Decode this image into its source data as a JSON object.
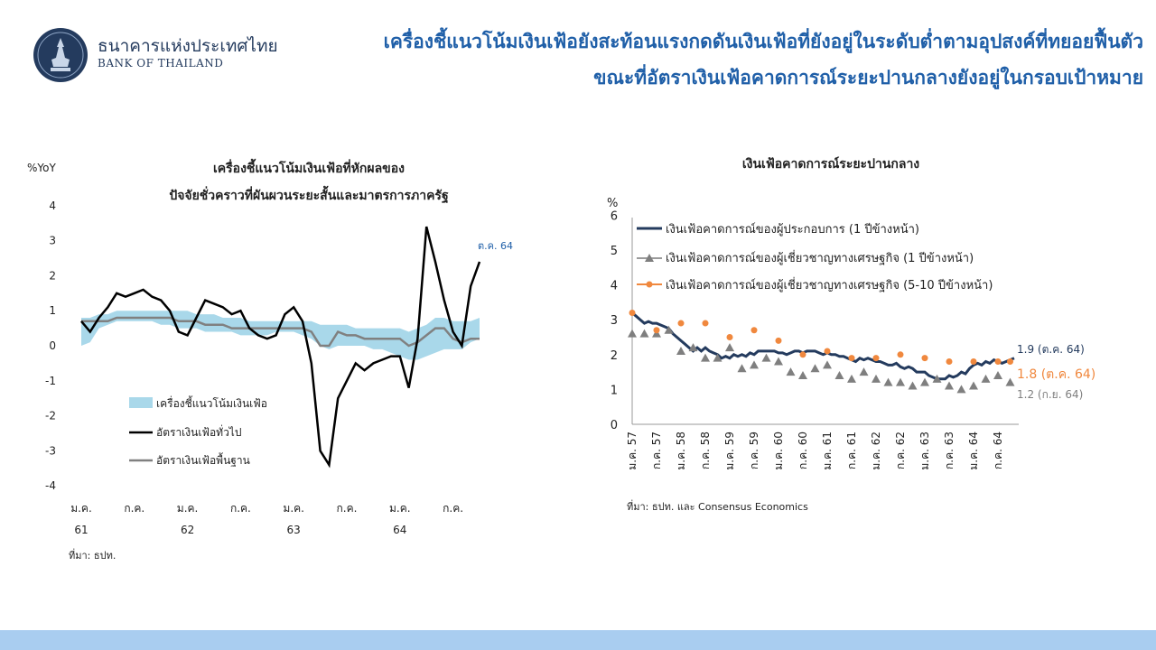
{
  "header": {
    "bank_name_th": "ธนาคารแห่งประเทศไทย",
    "bank_name_en": "BANK OF THAILAND",
    "title_line1": "เครื่องชี้แนวโน้มเงินเฟ้อยังสะท้อนแรงกดดันเงินเฟ้อที่ยังอยู่ในระดับต่ำตามอุปสงค์ที่ทยอยฟื้นตัว",
    "title_line2": "ขณะที่อัตราเงินเฟ้อคาดการณ์ระยะปานกลางยังอยู่ในกรอบเป้าหมาย"
  },
  "colors": {
    "title": "#1f5fa8",
    "band": "#a9d8ea",
    "headline": "#000000",
    "core": "#808080",
    "business": "#243b5e",
    "consensus_1y": "#7f7f7f",
    "consensus_5_10y": "#f0883e",
    "footer": "#a9cdf0"
  },
  "chart_data": [
    {
      "type": "line",
      "title": "เครื่องชี้แนวโน้มเงินเฟ้อที่หักผลของ",
      "subtitle": "ปัจจัยชั่วคราวที่ผันผวนระยะสั้นและมาตรการภาครัฐ",
      "ylabel": "%YoY",
      "ylim": [
        -4,
        4
      ],
      "yticks": [
        "4",
        "3",
        "2",
        "1",
        "0",
        "-1",
        "-2",
        "-3",
        "-4"
      ],
      "xticks": [
        "ม.ค.",
        "ก.ค.",
        "ม.ค.",
        "ก.ค.",
        "ม.ค.",
        "ก.ค.",
        "ม.ค.",
        "ก.ค."
      ],
      "year_labels": [
        "61",
        "62",
        "63",
        "64"
      ],
      "annotation": "ต.ค. 64",
      "source": "ที่มา: ธปท.",
      "legend": [
        "เครื่องชี้แนวโน้มเงินเฟ้อ",
        "อัตราเงินเฟ้อทั่วไป",
        "อัตราเงินเฟ้อพื้นฐาน"
      ],
      "months": 46,
      "series": [
        {
          "name": "อัตราเงินเฟ้อทั่วไป",
          "values": [
            0.7,
            0.4,
            0.8,
            1.1,
            1.5,
            1.4,
            1.5,
            1.6,
            1.4,
            1.3,
            1.0,
            0.4,
            0.3,
            0.8,
            1.3,
            1.2,
            1.1,
            0.9,
            1.0,
            0.5,
            0.3,
            0.2,
            0.3,
            0.9,
            1.1,
            0.7,
            -0.5,
            -3.0,
            -3.4,
            -1.5,
            -1.0,
            -0.5,
            -0.7,
            -0.5,
            -0.4,
            -0.3,
            -0.3,
            -1.2,
            0.2,
            3.4,
            2.4,
            1.3,
            0.4,
            0.0,
            1.7,
            2.4
          ]
        },
        {
          "name": "อัตราเงินเฟ้อพื้นฐาน",
          "values": [
            0.7,
            0.7,
            0.7,
            0.7,
            0.8,
            0.8,
            0.8,
            0.8,
            0.8,
            0.8,
            0.8,
            0.7,
            0.7,
            0.7,
            0.6,
            0.6,
            0.6,
            0.5,
            0.5,
            0.5,
            0.5,
            0.5,
            0.5,
            0.5,
            0.5,
            0.5,
            0.4,
            0.0,
            0.0,
            0.4,
            0.3,
            0.3,
            0.2,
            0.2,
            0.2,
            0.2,
            0.2,
            0.0,
            0.1,
            0.3,
            0.5,
            0.5,
            0.2,
            0.1,
            0.2,
            0.2
          ]
        },
        {
          "name": "เครื่องชี้แนวโน้มเงินเฟ้อ",
          "low": [
            0.0,
            0.1,
            0.5,
            0.6,
            0.7,
            0.7,
            0.7,
            0.7,
            0.7,
            0.6,
            0.6,
            0.5,
            0.5,
            0.5,
            0.4,
            0.4,
            0.4,
            0.4,
            0.3,
            0.3,
            0.3,
            0.3,
            0.4,
            0.4,
            0.4,
            0.3,
            0.2,
            0.0,
            -0.1,
            0.0,
            0.0,
            0.0,
            0.0,
            -0.1,
            -0.1,
            -0.2,
            -0.3,
            -0.4,
            -0.4,
            -0.3,
            -0.2,
            -0.1,
            -0.1,
            -0.1,
            0.1,
            0.2
          ],
          "high": [
            0.8,
            0.8,
            0.9,
            0.9,
            1.0,
            1.0,
            1.0,
            1.0,
            1.0,
            1.0,
            1.0,
            1.0,
            1.0,
            0.9,
            0.9,
            0.9,
            0.8,
            0.8,
            0.8,
            0.7,
            0.7,
            0.7,
            0.7,
            0.7,
            0.7,
            0.7,
            0.7,
            0.6,
            0.6,
            0.6,
            0.6,
            0.5,
            0.5,
            0.5,
            0.5,
            0.5,
            0.5,
            0.4,
            0.5,
            0.6,
            0.8,
            0.8,
            0.7,
            0.7,
            0.7,
            0.8
          ]
        }
      ]
    },
    {
      "type": "line",
      "title": "เงินเฟ้อคาดการณ์ระยะปานกลาง",
      "ylabel": "%",
      "ylim": [
        0,
        6
      ],
      "yticks": [
        "6",
        "5",
        "4",
        "3",
        "2",
        "1",
        "0"
      ],
      "xticks": [
        "ม.ค. 57",
        "ก.ค. 57",
        "ม.ค. 58",
        "ก.ค. 58",
        "ม.ค. 59",
        "ก.ค. 59",
        "ม.ค. 60",
        "ก.ค. 60",
        "ม.ค. 61",
        "ก.ค. 61",
        "ม.ค. 62",
        "ก.ค. 62",
        "ม.ค. 63",
        "ก.ค. 63",
        "ม.ค. 64",
        "ก.ค. 64"
      ],
      "source": "ที่มา: ธปท. และ Consensus Economics",
      "end_labels": [
        "1.9 (ต.ค. 64)",
        "1.8 (ต.ค. 64)",
        "1.2 (ก.ย. 64)"
      ],
      "legend": [
        "เงินเฟ้อคาดการณ์ของผู้ประกอบการ  (1 ปีข้างหน้า)",
        "เงินเฟ้อคาดการณ์ของผู้เชี่ยวชาญทางเศรษฐกิจ  (1 ปีข้างหน้า)",
        "เงินเฟ้อคาดการณ์ของผู้เชี่ยวชาญทางเศรษฐกิจ  (5-10 ปีข้างหน้า)"
      ],
      "series": [
        {
          "name": "เงินเฟ้อคาดการณ์ของผู้ประกอบการ  (1 ปีข้างหน้า)",
          "x": [
            0,
            1,
            2,
            3,
            4,
            5,
            6,
            7,
            8,
            9,
            10,
            11,
            12,
            13,
            14,
            15,
            16,
            17,
            18,
            19,
            20,
            21,
            22,
            23,
            24,
            25,
            26,
            27,
            28,
            29,
            30,
            31,
            32,
            33,
            34,
            35,
            36,
            37,
            38,
            39,
            40,
            41,
            42,
            43,
            44,
            45,
            46,
            47,
            48,
            49,
            50,
            51,
            52,
            53,
            54,
            55,
            56,
            57,
            58,
            59,
            60,
            61,
            62,
            63,
            64,
            65,
            66,
            67,
            68,
            69,
            70,
            71,
            72,
            73,
            74,
            75,
            76,
            77,
            78,
            79,
            80,
            81,
            82,
            83,
            84,
            85,
            86,
            87,
            88,
            89,
            90,
            91,
            92,
            93,
            94
          ],
          "values": [
            3.2,
            3.1,
            3.0,
            2.9,
            2.95,
            2.9,
            2.9,
            2.85,
            2.8,
            2.75,
            2.6,
            2.5,
            2.4,
            2.3,
            2.2,
            2.1,
            2.2,
            2.1,
            2.2,
            2.1,
            2.05,
            2.0,
            1.9,
            1.95,
            1.9,
            2.0,
            1.95,
            2.0,
            1.95,
            2.05,
            2.0,
            2.1,
            2.1,
            2.1,
            2.1,
            2.1,
            2.05,
            2.05,
            2.0,
            2.05,
            2.1,
            2.1,
            2.05,
            2.1,
            2.1,
            2.1,
            2.05,
            2.0,
            2.05,
            2.0,
            2.0,
            1.95,
            1.95,
            1.9,
            1.85,
            1.8,
            1.9,
            1.85,
            1.9,
            1.85,
            1.8,
            1.8,
            1.75,
            1.7,
            1.7,
            1.75,
            1.65,
            1.6,
            1.65,
            1.6,
            1.5,
            1.5,
            1.5,
            1.4,
            1.35,
            1.3,
            1.3,
            1.3,
            1.4,
            1.35,
            1.4,
            1.5,
            1.45,
            1.6,
            1.7,
            1.75,
            1.7,
            1.8,
            1.75,
            1.85,
            1.8,
            1.75,
            1.8,
            1.85,
            1.9
          ]
        },
        {
          "name": "เงินเฟ้อคาดการณ์ของผู้เชี่ยวชาญทางเศรษฐกิจ  (1 ปีข้างหน้า)",
          "x": [
            0,
            3,
            6,
            9,
            12,
            15,
            18,
            21,
            24,
            27,
            30,
            33,
            36,
            39,
            42,
            45,
            48,
            51,
            54,
            57,
            60,
            63,
            66,
            69,
            72,
            75,
            78,
            81,
            84,
            87,
            90,
            93
          ],
          "values": [
            2.6,
            2.6,
            2.6,
            2.7,
            2.1,
            2.2,
            1.9,
            1.9,
            2.2,
            1.6,
            1.7,
            1.9,
            1.8,
            1.5,
            1.4,
            1.6,
            1.7,
            1.4,
            1.3,
            1.5,
            1.3,
            1.2,
            1.2,
            1.1,
            1.2,
            1.3,
            1.1,
            1.0,
            1.1,
            1.3,
            1.4,
            1.2
          ]
        },
        {
          "name": "เงินเฟ้อคาดการณ์ของผู้เชี่ยวชาญทางเศรษฐกิจ  (5-10 ปีข้างหน้า)",
          "x": [
            0,
            6,
            12,
            18,
            24,
            30,
            36,
            42,
            48,
            54,
            60,
            66,
            72,
            78,
            84,
            90,
            93
          ],
          "values": [
            3.2,
            2.7,
            2.9,
            2.9,
            2.5,
            2.7,
            2.4,
            2.0,
            2.1,
            1.9,
            1.9,
            2.0,
            1.9,
            1.8,
            1.8,
            1.8,
            1.8
          ]
        }
      ]
    }
  ]
}
